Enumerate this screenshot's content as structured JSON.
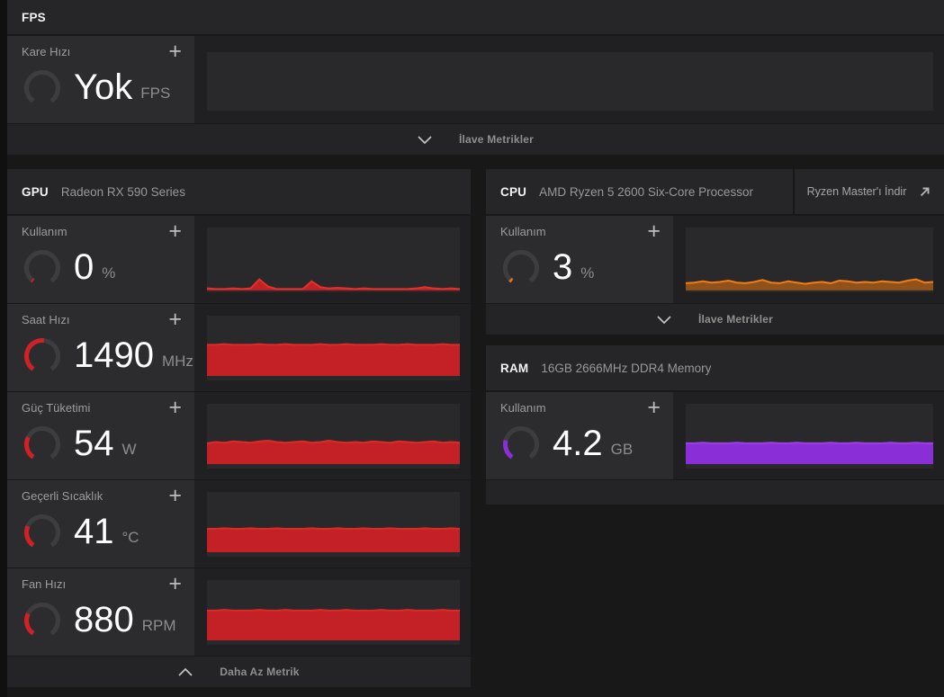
{
  "icons": {
    "plus": "+"
  },
  "colors": {
    "gpu_accent": "#d22027",
    "cpu_accent": "#e8720e",
    "ram_accent": "#8a2ed8",
    "gauge_track": "#3d3d3f",
    "panel_bg": "#262628",
    "tile_bg": "#2c2c2e"
  },
  "fps_section": {
    "title": "FPS",
    "metric": {
      "label": "Kare Hızı",
      "value": "Yok",
      "unit": "FPS",
      "gauge_pct": 0,
      "gauge_color": "#d22027",
      "chart": {
        "points": []
      }
    },
    "expander": {
      "label": "İlave Metrikler",
      "state": "collapsed"
    }
  },
  "gpu_section": {
    "title": "GPU",
    "subtitle": "Radeon RX 590 Series",
    "metrics": [
      {
        "label": "Kullanım",
        "value": "0",
        "unit": "%",
        "gauge_pct": 0.02,
        "gauge_color": "#d22027",
        "chart": {
          "fill": "#c42127",
          "stroke": "#e5302c",
          "fill_opacity": 1,
          "base": 0.97,
          "points": [
            0.03,
            0.02,
            0.02,
            0.03,
            0.02,
            0.03,
            0.17,
            0.06,
            0.02,
            0.02,
            0.02,
            0.02,
            0.14,
            0.05,
            0.03,
            0.04,
            0.03,
            0.02,
            0.03,
            0.02,
            0.02,
            0.02,
            0.02,
            0.02,
            0.03,
            0.05,
            0.03,
            0.02,
            0.03,
            0.02
          ]
        }
      },
      {
        "label": "Saat Hızı",
        "value": "1490",
        "unit": "MHz",
        "gauge_pct": 0.52,
        "gauge_color": "#d22027",
        "chart": {
          "fill": "#c42127",
          "stroke": "#dd2a28",
          "fill_opacity": 1,
          "base": 0.93,
          "points": [
            0.48,
            0.48,
            0.49,
            0.48,
            0.48,
            0.48,
            0.49,
            0.48,
            0.48,
            0.49,
            0.48,
            0.48,
            0.48,
            0.49,
            0.48,
            0.48,
            0.49,
            0.48,
            0.48,
            0.48,
            0.49,
            0.48,
            0.48,
            0.49,
            0.48,
            0.48,
            0.48,
            0.49,
            0.48,
            0.48
          ]
        }
      },
      {
        "label": "Güç Tüketimi",
        "value": "54",
        "unit": "W",
        "gauge_pct": 0.28,
        "gauge_color": "#d22027",
        "chart": {
          "fill": "#c42127",
          "stroke": "#dd2a28",
          "fill_opacity": 1,
          "base": 0.93,
          "points": [
            0.32,
            0.34,
            0.33,
            0.35,
            0.34,
            0.33,
            0.35,
            0.36,
            0.34,
            0.33,
            0.34,
            0.35,
            0.33,
            0.34,
            0.36,
            0.34,
            0.33,
            0.34,
            0.33,
            0.35,
            0.34,
            0.33,
            0.35,
            0.34,
            0.33,
            0.34,
            0.35,
            0.33,
            0.34,
            0.33
          ]
        }
      },
      {
        "label": "Geçerli Sıcaklık",
        "value": "41",
        "unit": "°C",
        "gauge_pct": 0.27,
        "gauge_color": "#d22027",
        "chart": {
          "fill": "#c42127",
          "stroke": "#dd2a28",
          "fill_opacity": 1,
          "base": 0.93,
          "points": [
            0.36,
            0.36,
            0.37,
            0.36,
            0.36,
            0.37,
            0.36,
            0.36,
            0.37,
            0.36,
            0.36,
            0.36,
            0.37,
            0.36,
            0.36,
            0.37,
            0.36,
            0.36,
            0.37,
            0.36,
            0.36,
            0.37,
            0.36,
            0.36,
            0.36,
            0.37,
            0.36,
            0.36,
            0.37,
            0.36
          ]
        }
      },
      {
        "label": "Fan Hızı",
        "value": "880",
        "unit": "RPM",
        "gauge_pct": 0.28,
        "gauge_color": "#d22027",
        "chart": {
          "fill": "#c42127",
          "stroke": "#dd2a28",
          "fill_opacity": 1,
          "base": 0.93,
          "points": [
            0.46,
            0.46,
            0.47,
            0.46,
            0.46,
            0.46,
            0.47,
            0.46,
            0.46,
            0.47,
            0.46,
            0.46,
            0.46,
            0.47,
            0.46,
            0.46,
            0.47,
            0.46,
            0.46,
            0.46,
            0.47,
            0.46,
            0.46,
            0.47,
            0.46,
            0.46,
            0.46,
            0.47,
            0.46,
            0.46
          ]
        }
      }
    ],
    "expander": {
      "label": "Daha Az Metrik",
      "state": "expanded"
    }
  },
  "cpu_section": {
    "title": "CPU",
    "subtitle": "AMD Ryzen 5 2600 Six-Core Processor",
    "download_button": {
      "label": "Ryzen Master'ı İndir"
    },
    "metrics": [
      {
        "label": "Kullanım",
        "value": "3",
        "unit": "%",
        "gauge_pct": 0.03,
        "gauge_color": "#e8720e",
        "chart": {
          "fill": "#e8720e",
          "stroke": "#f07d15",
          "fill_opacity": 0.55,
          "base": 0.97,
          "points": [
            0.11,
            0.12,
            0.14,
            0.12,
            0.13,
            0.15,
            0.12,
            0.11,
            0.13,
            0.16,
            0.12,
            0.11,
            0.14,
            0.12,
            0.1,
            0.12,
            0.13,
            0.11,
            0.15,
            0.14,
            0.12,
            0.13,
            0.12,
            0.14,
            0.13,
            0.12,
            0.15,
            0.17,
            0.12,
            0.13
          ]
        }
      }
    ],
    "expander": {
      "label": "İlave Metrikler",
      "state": "collapsed"
    }
  },
  "ram_section": {
    "title": "RAM",
    "subtitle": "16GB 2666MHz DDR4 Memory",
    "metrics": [
      {
        "label": "Kullanım",
        "value": "4.2",
        "unit": "GB",
        "gauge_pct": 0.24,
        "gauge_color": "#8a2ed8",
        "chart": {
          "fill": "#8a2ed8",
          "stroke": "#9b40e8",
          "fill_opacity": 1,
          "base": 0.93,
          "points": [
            0.32,
            0.32,
            0.33,
            0.32,
            0.32,
            0.32,
            0.33,
            0.32,
            0.32,
            0.32,
            0.33,
            0.32,
            0.32,
            0.33,
            0.32,
            0.32,
            0.32,
            0.33,
            0.32,
            0.32,
            0.33,
            0.32,
            0.32,
            0.32,
            0.33,
            0.32,
            0.32,
            0.33,
            0.32,
            0.32
          ]
        }
      }
    ]
  }
}
